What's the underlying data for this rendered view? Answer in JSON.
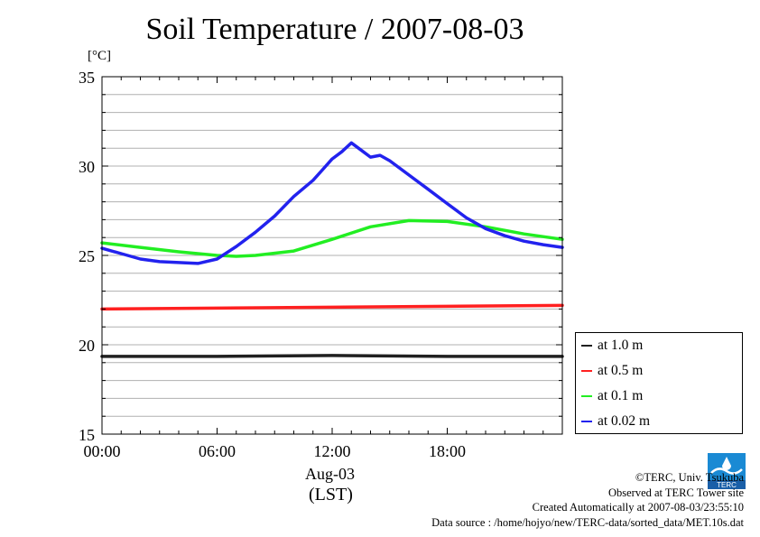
{
  "title": "Soil Temperature / 2007-08-03",
  "unit_label": "[°C]",
  "x_date_label": "Aug-03",
  "x_zone_label": "(LST)",
  "credits": {
    "copyright": "©TERC, Univ. Tsukuba",
    "site": "Observed at TERC Tower site",
    "created": "Created Automatically at 2007-08-03/23:55:10",
    "source": "Data source : /home/hojyo/new/TERC-data/sorted_data/MET.10s.dat"
  },
  "logo_text": "TERC",
  "chart_data": {
    "type": "line",
    "title": "Soil Temperature / 2007-08-03",
    "ylabel": "[°C]",
    "xlabel": "Aug-03",
    "xlim": [
      0,
      24
    ],
    "ylim": [
      15,
      35
    ],
    "grid": true,
    "legend_position": "bottom-right outside",
    "x_ticks": [
      0,
      6,
      12,
      18
    ],
    "x_tick_labels": [
      "00:00",
      "06:00",
      "12:00",
      "18:00"
    ],
    "y_ticks": [
      15,
      20,
      25,
      30,
      35
    ],
    "y_tick_labels": [
      "15",
      "20",
      "25",
      "30",
      "35"
    ],
    "series": [
      {
        "name": "at 1.0 m",
        "color": "#202020",
        "x": [
          0,
          6,
          12,
          18,
          24
        ],
        "y": [
          19.35,
          19.35,
          19.4,
          19.35,
          19.35
        ]
      },
      {
        "name": "at 0.5 m",
        "color": "#ff2020",
        "x": [
          0,
          6,
          12,
          18,
          24
        ],
        "y": [
          22.0,
          22.05,
          22.1,
          22.15,
          22.2
        ]
      },
      {
        "name": "at 0.1 m",
        "color": "#22ee22",
        "x": [
          0,
          2,
          4,
          6,
          7,
          8,
          10,
          12,
          14,
          16,
          18,
          20,
          22,
          24
        ],
        "y": [
          25.7,
          25.45,
          25.2,
          25.0,
          24.95,
          25.0,
          25.25,
          25.9,
          26.6,
          26.95,
          26.9,
          26.6,
          26.2,
          25.9
        ]
      },
      {
        "name": "at 0.02 m",
        "color": "#2222ee",
        "x": [
          0,
          1,
          2,
          3,
          4,
          5,
          6,
          7,
          8,
          9,
          10,
          11,
          11.5,
          12,
          12.5,
          13,
          13.5,
          14,
          14.5,
          15,
          16,
          17,
          18,
          19,
          20,
          21,
          22,
          23,
          24
        ],
        "y": [
          25.4,
          25.1,
          24.8,
          24.65,
          24.6,
          24.55,
          24.8,
          25.5,
          26.3,
          27.2,
          28.3,
          29.2,
          29.8,
          30.4,
          30.8,
          31.3,
          30.9,
          30.5,
          30.6,
          30.3,
          29.5,
          28.7,
          27.9,
          27.1,
          26.5,
          26.1,
          25.8,
          25.6,
          25.45
        ]
      }
    ]
  }
}
